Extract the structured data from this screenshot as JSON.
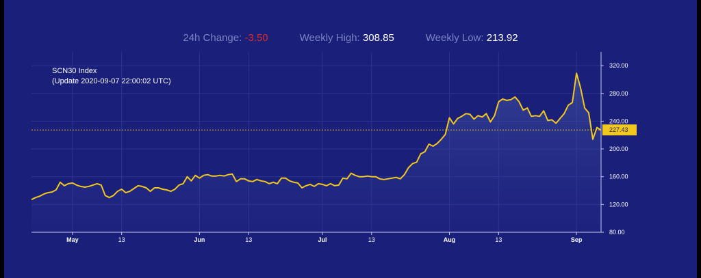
{
  "stats": {
    "change_label": "24h Change:",
    "change_value": "-3.50",
    "high_label": "Weekly High:",
    "high_value": "308.85",
    "low_label": "Weekly Low:",
    "low_value": "213.92"
  },
  "colors": {
    "background": "#1a1f7a",
    "line": "#f2c81c",
    "last_price_badge": "#f2c81c"
  },
  "chart_data": {
    "type": "area",
    "title": "SCN30 Index",
    "subtitle": "(Update 2020-09-07 22:00:02 UTC)",
    "x_start": "2020-04-21",
    "x_end": "2020-09-07",
    "x_ticks": [
      {
        "label": "May",
        "date": "2020-05-01",
        "bold": true
      },
      {
        "label": "13",
        "date": "2020-05-13",
        "bold": false
      },
      {
        "label": "Jun",
        "date": "2020-06-01",
        "bold": true
      },
      {
        "label": "13",
        "date": "2020-06-13",
        "bold": false
      },
      {
        "label": "Jul",
        "date": "2020-07-01",
        "bold": true
      },
      {
        "label": "13",
        "date": "2020-07-13",
        "bold": false
      },
      {
        "label": "Aug",
        "date": "2020-08-01",
        "bold": true
      },
      {
        "label": "13",
        "date": "2020-08-13",
        "bold": false
      },
      {
        "label": "Sep",
        "date": "2020-09-01",
        "bold": true
      }
    ],
    "y_ticks": [
      "80.00",
      "120.00",
      "160.00",
      "200.00",
      "240.00",
      "280.00",
      "320.00"
    ],
    "ylim": [
      80,
      330
    ],
    "last_price": "227.43",
    "series": [
      {
        "values": [
          [
            "2020-04-21",
            127
          ],
          [
            "2020-04-22",
            130
          ],
          [
            "2020-04-23",
            132
          ],
          [
            "2020-04-24",
            135
          ],
          [
            "2020-04-25",
            137
          ],
          [
            "2020-04-26",
            138
          ],
          [
            "2020-04-27",
            141
          ],
          [
            "2020-04-28",
            152
          ],
          [
            "2020-04-29",
            147
          ],
          [
            "2020-04-30",
            150
          ],
          [
            "2020-05-01",
            151
          ],
          [
            "2020-05-02",
            148
          ],
          [
            "2020-05-03",
            146
          ],
          [
            "2020-05-04",
            145
          ],
          [
            "2020-05-05",
            146
          ],
          [
            "2020-05-06",
            148
          ],
          [
            "2020-05-07",
            150
          ],
          [
            "2020-05-08",
            148
          ],
          [
            "2020-05-09",
            133
          ],
          [
            "2020-05-10",
            130
          ],
          [
            "2020-05-11",
            133
          ],
          [
            "2020-05-12",
            139
          ],
          [
            "2020-05-13",
            142
          ],
          [
            "2020-05-14",
            137
          ],
          [
            "2020-05-15",
            139
          ],
          [
            "2020-05-16",
            143
          ],
          [
            "2020-05-17",
            147
          ],
          [
            "2020-05-18",
            146
          ],
          [
            "2020-05-19",
            144
          ],
          [
            "2020-05-20",
            139
          ],
          [
            "2020-05-21",
            144
          ],
          [
            "2020-05-22",
            144
          ],
          [
            "2020-05-23",
            142
          ],
          [
            "2020-05-24",
            141
          ],
          [
            "2020-05-25",
            139
          ],
          [
            "2020-05-26",
            142
          ],
          [
            "2020-05-27",
            148
          ],
          [
            "2020-05-28",
            150
          ],
          [
            "2020-05-29",
            160
          ],
          [
            "2020-05-30",
            154
          ],
          [
            "2020-05-31",
            162
          ],
          [
            "2020-06-01",
            158
          ],
          [
            "2020-06-02",
            162
          ],
          [
            "2020-06-03",
            163
          ],
          [
            "2020-06-04",
            161
          ],
          [
            "2020-06-05",
            161
          ],
          [
            "2020-06-06",
            162
          ],
          [
            "2020-06-07",
            161
          ],
          [
            "2020-06-08",
            163
          ],
          [
            "2020-06-09",
            164
          ],
          [
            "2020-06-10",
            153
          ],
          [
            "2020-06-11",
            157
          ],
          [
            "2020-06-12",
            157
          ],
          [
            "2020-06-13",
            154
          ],
          [
            "2020-06-14",
            153
          ],
          [
            "2020-06-15",
            156
          ],
          [
            "2020-06-16",
            154
          ],
          [
            "2020-06-17",
            153
          ],
          [
            "2020-06-18",
            150
          ],
          [
            "2020-06-19",
            152
          ],
          [
            "2020-06-20",
            150
          ],
          [
            "2020-06-21",
            158
          ],
          [
            "2020-06-22",
            158
          ],
          [
            "2020-06-23",
            154
          ],
          [
            "2020-06-24",
            152
          ],
          [
            "2020-06-25",
            151
          ],
          [
            "2020-06-26",
            144
          ],
          [
            "2020-06-27",
            147
          ],
          [
            "2020-06-28",
            149
          ],
          [
            "2020-06-29",
            146
          ],
          [
            "2020-06-30",
            150
          ],
          [
            "2020-07-01",
            149
          ],
          [
            "2020-07-02",
            147
          ],
          [
            "2020-07-03",
            150
          ],
          [
            "2020-07-04",
            147
          ],
          [
            "2020-07-05",
            148
          ],
          [
            "2020-07-06",
            158
          ],
          [
            "2020-07-07",
            157
          ],
          [
            "2020-07-08",
            165
          ],
          [
            "2020-07-09",
            162
          ],
          [
            "2020-07-10",
            160
          ],
          [
            "2020-07-11",
            160
          ],
          [
            "2020-07-12",
            161
          ],
          [
            "2020-07-13",
            160
          ],
          [
            "2020-07-14",
            160
          ],
          [
            "2020-07-15",
            157
          ],
          [
            "2020-07-16",
            156
          ],
          [
            "2020-07-17",
            157
          ],
          [
            "2020-07-18",
            158
          ],
          [
            "2020-07-19",
            159
          ],
          [
            "2020-07-20",
            157
          ],
          [
            "2020-07-21",
            163
          ],
          [
            "2020-07-22",
            173
          ],
          [
            "2020-07-23",
            179
          ],
          [
            "2020-07-24",
            181
          ],
          [
            "2020-07-25",
            193
          ],
          [
            "2020-07-26",
            196
          ],
          [
            "2020-07-27",
            207
          ],
          [
            "2020-07-28",
            204
          ],
          [
            "2020-07-29",
            208
          ],
          [
            "2020-07-30",
            214
          ],
          [
            "2020-07-31",
            221
          ],
          [
            "2020-08-01",
            245
          ],
          [
            "2020-08-02",
            236
          ],
          [
            "2020-08-03",
            244
          ],
          [
            "2020-08-04",
            247
          ],
          [
            "2020-08-05",
            251
          ],
          [
            "2020-08-06",
            250
          ],
          [
            "2020-08-07",
            243
          ],
          [
            "2020-08-08",
            248
          ],
          [
            "2020-08-09",
            246
          ],
          [
            "2020-08-10",
            251
          ],
          [
            "2020-08-11",
            239
          ],
          [
            "2020-08-12",
            248
          ],
          [
            "2020-08-13",
            268
          ],
          [
            "2020-08-14",
            272
          ],
          [
            "2020-08-15",
            270
          ],
          [
            "2020-08-16",
            271
          ],
          [
            "2020-08-17",
            275
          ],
          [
            "2020-08-18",
            268
          ],
          [
            "2020-08-19",
            256
          ],
          [
            "2020-08-20",
            259
          ],
          [
            "2020-08-21",
            247
          ],
          [
            "2020-08-22",
            248
          ],
          [
            "2020-08-23",
            247
          ],
          [
            "2020-08-24",
            255
          ],
          [
            "2020-08-25",
            241
          ],
          [
            "2020-08-26",
            242
          ],
          [
            "2020-08-27",
            237
          ],
          [
            "2020-08-28",
            244
          ],
          [
            "2020-08-29",
            251
          ],
          [
            "2020-08-30",
            263
          ],
          [
            "2020-08-31",
            267
          ],
          [
            "2020-09-01",
            309
          ],
          [
            "2020-09-02",
            288
          ],
          [
            "2020-09-03",
            259
          ],
          [
            "2020-09-04",
            252
          ],
          [
            "2020-09-05",
            214
          ],
          [
            "2020-09-06",
            231
          ],
          [
            "2020-09-07",
            227
          ]
        ]
      }
    ]
  }
}
